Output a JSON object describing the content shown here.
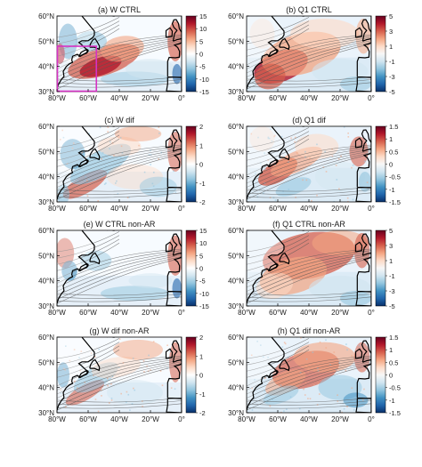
{
  "panels": [
    {
      "id": "a",
      "title": "(a) W CTRL",
      "cbar": "w",
      "cbar_ticks": [
        "15",
        "10",
        "5",
        "0",
        "-5",
        "-10",
        "-15"
      ],
      "pattern": "w_ctrl",
      "highlight_box": true
    },
    {
      "id": "b",
      "title": "(b) Q1 CTRL",
      "cbar": "q",
      "cbar_ticks": [
        "5",
        "3",
        "1",
        "-1",
        "-3",
        "-5"
      ],
      "pattern": "q_ctrl",
      "highlight_box": false
    },
    {
      "id": "c",
      "title": "(c) W dif",
      "cbar": "w",
      "cbar_ticks": [
        "2",
        "1",
        "0",
        "-1",
        "-2"
      ],
      "pattern": "w_dif",
      "highlight_box": false
    },
    {
      "id": "d",
      "title": "(d) Q1 dif",
      "cbar": "q",
      "cbar_ticks": [
        "1.5",
        "1",
        "0.5",
        "0",
        "-0.5",
        "-1",
        "-1.5"
      ],
      "pattern": "q_dif",
      "highlight_box": false
    },
    {
      "id": "e",
      "title": "(e) W CTRL non-AR",
      "cbar": "w",
      "cbar_ticks": [
        "15",
        "10",
        "5",
        "0",
        "-5",
        "-10",
        "-15"
      ],
      "pattern": "w_nonar",
      "highlight_box": false
    },
    {
      "id": "f",
      "title": "(f) Q1 CTRL non-AR",
      "cbar": "q",
      "cbar_ticks": [
        "5",
        "3",
        "1",
        "-1",
        "-3",
        "-5"
      ],
      "pattern": "q_nonar",
      "highlight_box": false
    },
    {
      "id": "g",
      "title": "(g) W dif non-AR",
      "cbar": "w",
      "cbar_ticks": [
        "2",
        "1",
        "0",
        "-1",
        "-2"
      ],
      "pattern": "w_difn",
      "highlight_box": false
    },
    {
      "id": "h",
      "title": "(h) Q1 dif non-AR",
      "cbar": "q",
      "cbar_ticks": [
        "1.5",
        "1",
        "0.5",
        "0",
        "-0.5",
        "-1",
        "-1.5"
      ],
      "pattern": "q_difn",
      "highlight_box": false
    }
  ],
  "lat_labels": [
    "60°N",
    "50°N",
    "40°N",
    "30°N"
  ],
  "lon_labels": [
    "80°W",
    "60°W",
    "40°W",
    "20°W",
    "0°"
  ],
  "colors": {
    "w_scale": [
      "#08306b",
      "#2166ac",
      "#4393c3",
      "#92c5de",
      "#d1e5f0",
      "#ffffff",
      "#fddbc7",
      "#f4a582",
      "#d6604d",
      "#b2182b",
      "#67001f"
    ],
    "q_scale": [
      "#08306b",
      "#2166ac",
      "#4393c3",
      "#92c5de",
      "#d1e5f0",
      "#f7f7f7",
      "#fddbc7",
      "#f4a582",
      "#d6604d",
      "#b2182b",
      "#67001f"
    ],
    "box": "#d633c4",
    "contour": "#555555",
    "coast": "#000000"
  }
}
